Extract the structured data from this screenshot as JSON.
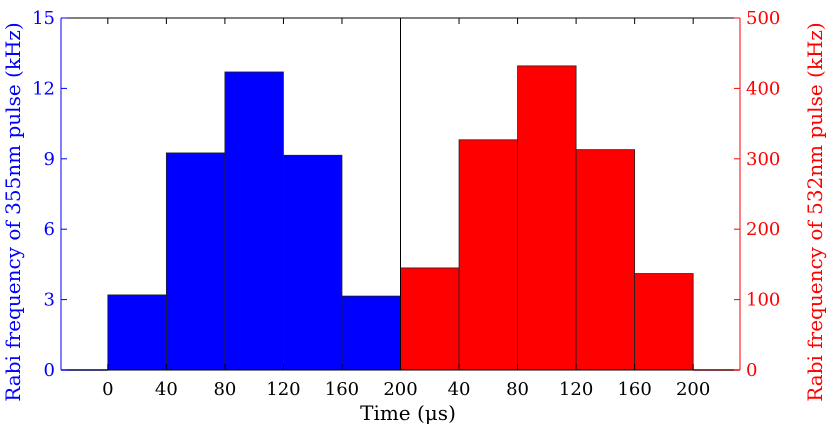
{
  "chart_data": {
    "type": "bar",
    "x_ticks": [
      "0",
      "40",
      "80",
      "120",
      "160",
      "200",
      "40",
      "80",
      "120",
      "160",
      "200"
    ],
    "xlabel": "Time (μs)",
    "ylabel_left": "Rabi frequency of 355nm pulse (kHz)",
    "ylabel_right": "Rabi frequency of 532nm pulse (kHz)",
    "ylim_left": [
      0,
      15
    ],
    "yticks_left": [
      0,
      3,
      6,
      9,
      12,
      15
    ],
    "ylim_right": [
      0,
      500
    ],
    "yticks_right": [
      0,
      100,
      200,
      300,
      400,
      500
    ],
    "grid": false,
    "series": [
      {
        "axis": "left",
        "color": "#0000ff",
        "bins": [
          [
            0,
            40
          ],
          [
            40,
            80
          ],
          [
            80,
            120
          ],
          [
            120,
            160
          ],
          [
            160,
            200
          ]
        ],
        "values": [
          3.2,
          9.25,
          12.7,
          9.15,
          3.15
        ]
      },
      {
        "axis": "right",
        "color": "#ff0000",
        "bins": [
          [
            200,
            240
          ],
          [
            240,
            280
          ],
          [
            280,
            320
          ],
          [
            320,
            360
          ],
          [
            360,
            400
          ]
        ],
        "values": [
          145,
          327,
          432,
          313,
          137
        ]
      }
    ],
    "x_range": [
      -32,
      432
    ],
    "divider_at": 200
  },
  "colors": {
    "left_axis": "#0000ff",
    "right_axis": "#ff0000",
    "text": "#000000"
  }
}
